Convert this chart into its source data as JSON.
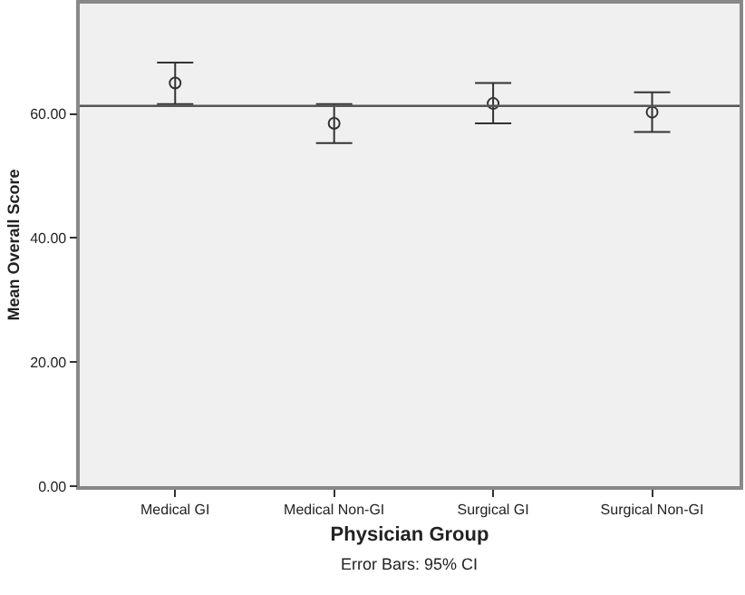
{
  "chart_data": {
    "type": "scatter",
    "categories": [
      "Medical GI",
      "Medical Non-GI",
      "Surgical GI",
      "Surgical Non-GI"
    ],
    "values": [
      65.0,
      58.5,
      61.7,
      60.3
    ],
    "errors": [
      [
        61.6,
        68.3
      ],
      [
        55.3,
        61.6
      ],
      [
        58.5,
        65.0
      ],
      [
        57.1,
        63.5
      ]
    ],
    "color": "#333333",
    "marker": "circle",
    "xlabel": "Physician Group",
    "ylabel": "Mean Overall Score",
    "ylim": [
      0,
      77.8
    ],
    "yticks": [
      {
        "value": 0,
        "label": "0.00"
      },
      {
        "value": 20,
        "label": "20.00"
      },
      {
        "value": 40,
        "label": "40.00"
      },
      {
        "value": 60,
        "label": "60.00"
      }
    ],
    "grid": false,
    "legend": false,
    "ref_lines": [
      {
        "axis": "y",
        "value": 61.3,
        "color": "#555555"
      }
    ],
    "annotations": [
      "Error Bars: 95% CI"
    ]
  }
}
